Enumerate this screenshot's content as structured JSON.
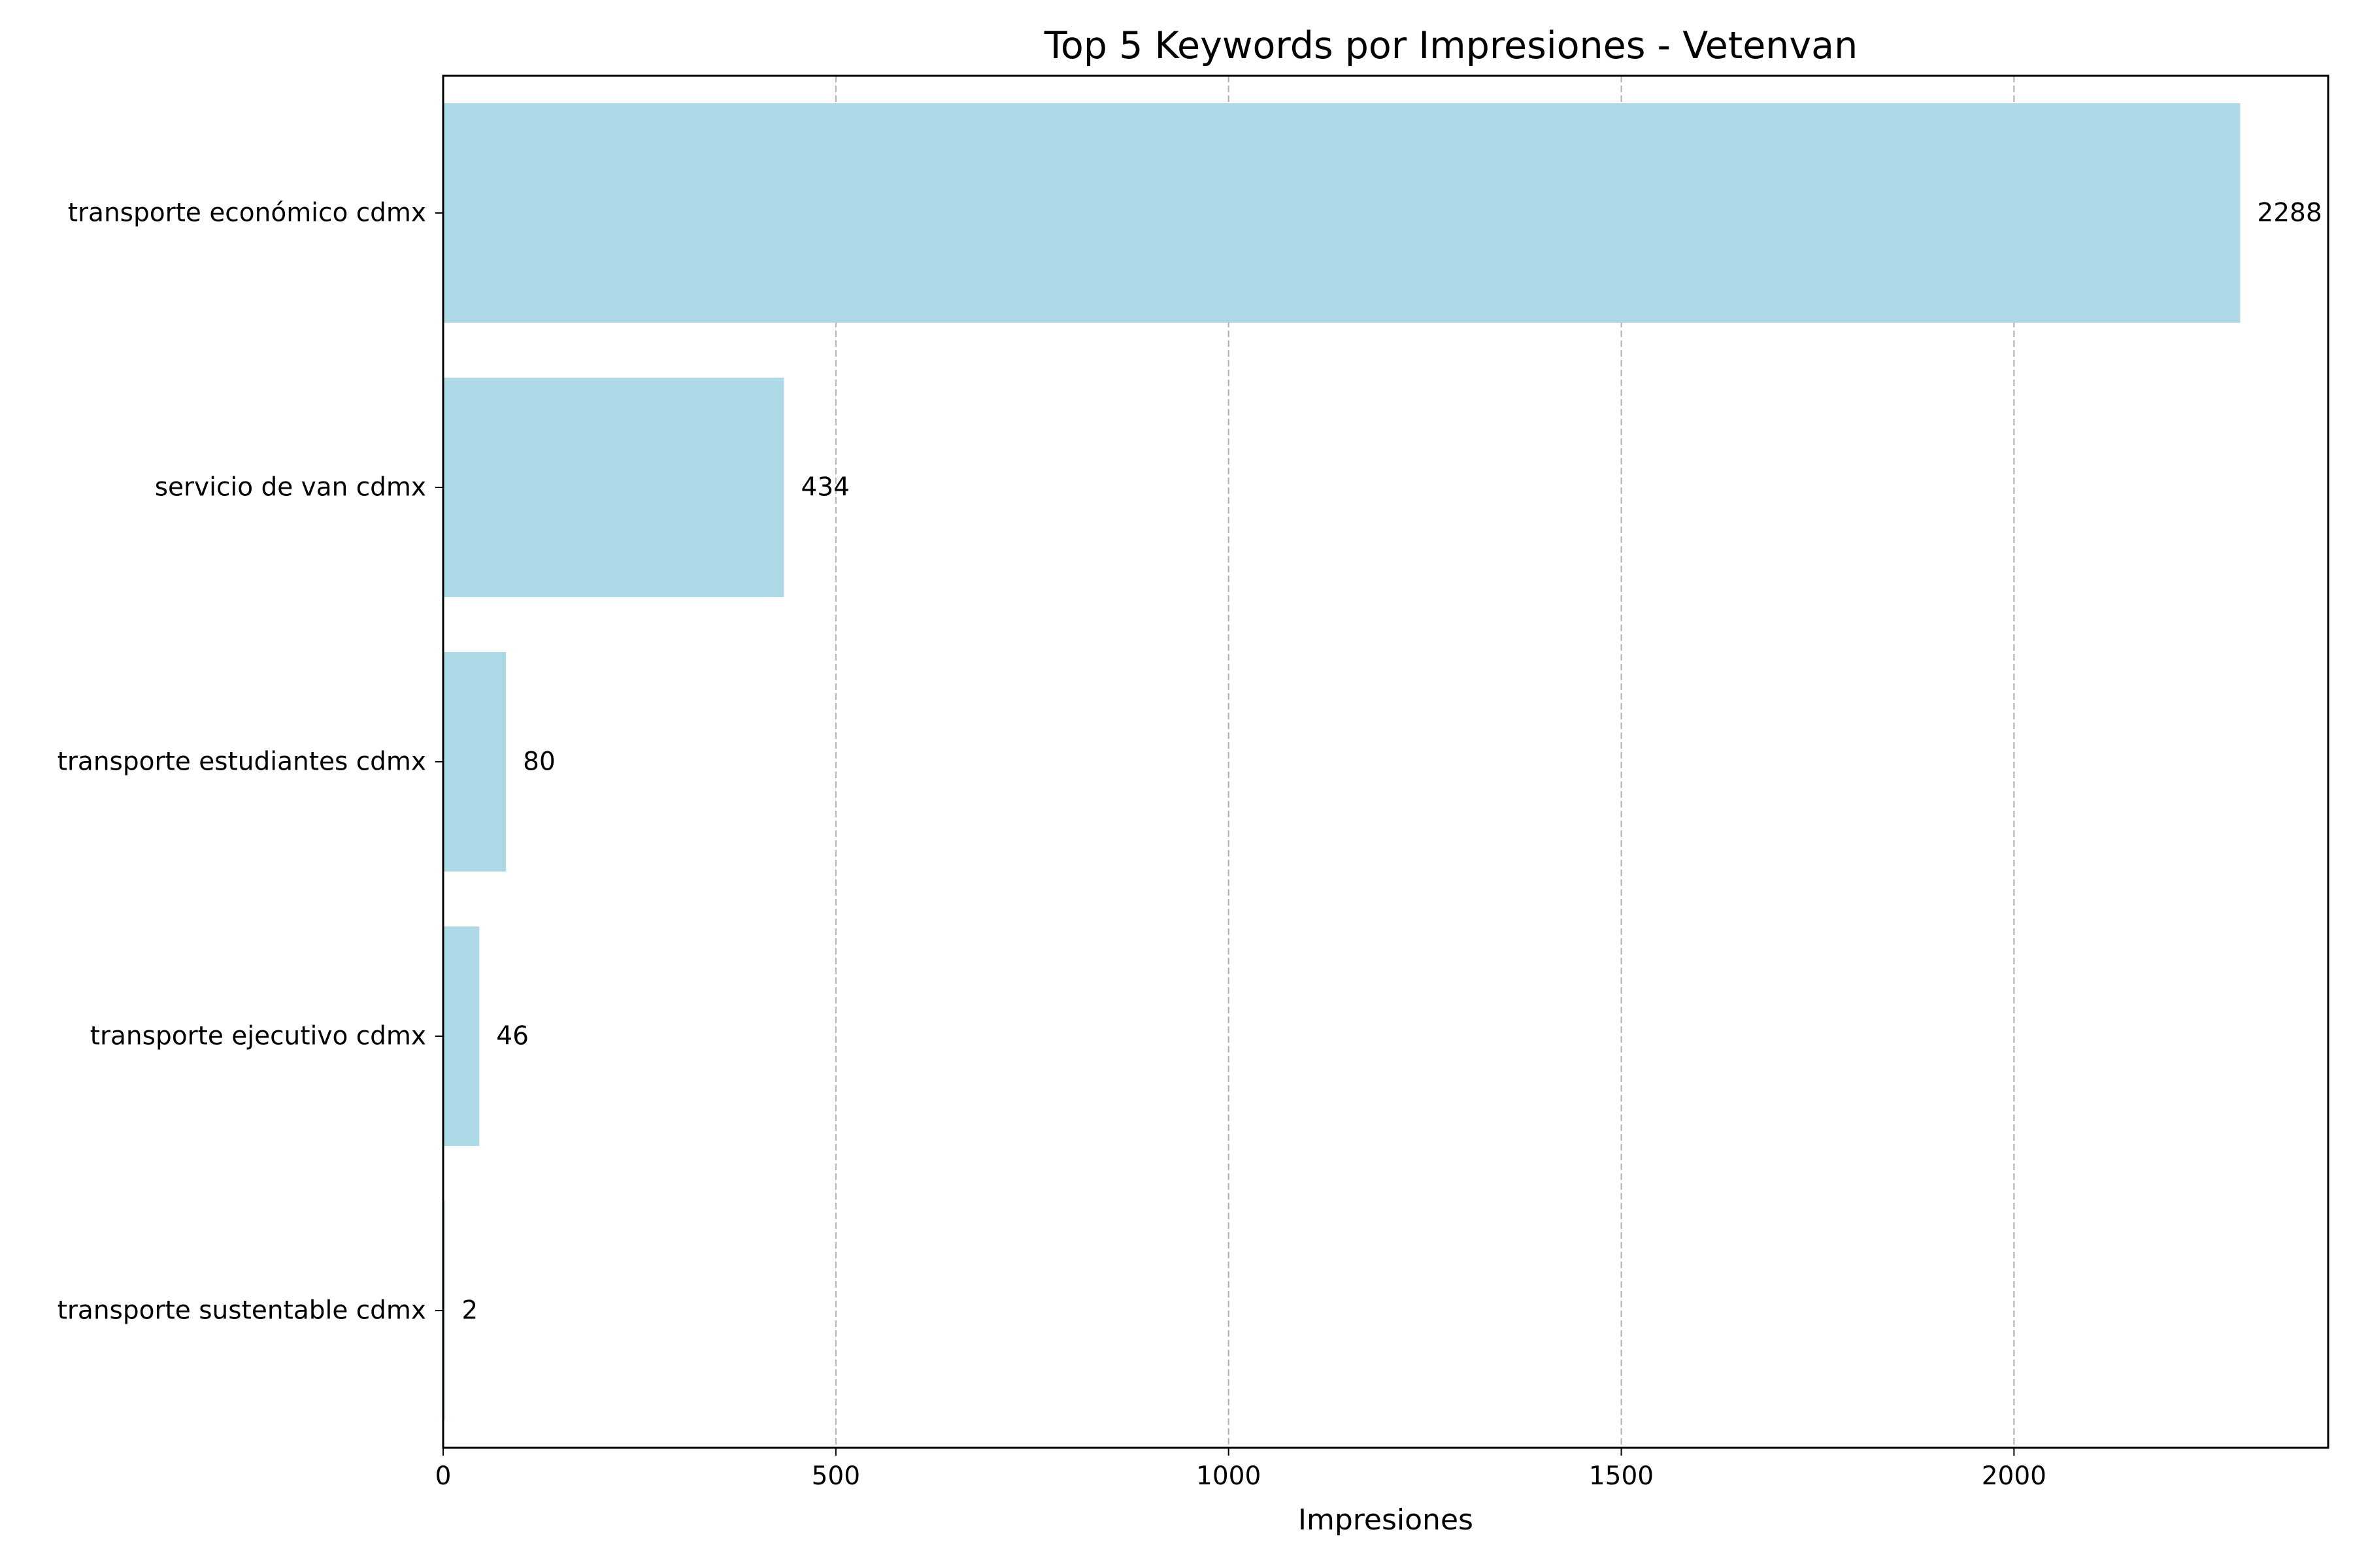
{
  "chart_data": {
    "type": "bar",
    "orientation": "horizontal",
    "title": "Top 5 Keywords por Impresiones - Vetenvan",
    "xlabel": "Impresiones",
    "ylabel": "",
    "xlim": [
      0,
      2400
    ],
    "xticks": [
      0,
      500,
      1000,
      1500,
      2000
    ],
    "grid": "x, dashed",
    "bar_color": "#add8e6",
    "categories": [
      "transporte económico cdmx",
      "servicio de van cdmx",
      "transporte estudiantes cdmx",
      "transporte ejecutivo cdmx",
      "transporte sustentable cdmx"
    ],
    "values": [
      2288,
      434,
      80,
      46,
      2
    ],
    "data_labels": [
      "2288",
      "434",
      "80",
      "46",
      "2"
    ]
  }
}
